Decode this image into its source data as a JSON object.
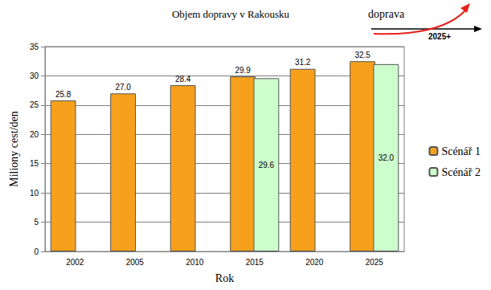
{
  "chart_data": {
    "type": "bar",
    "title": "Objem dopravy v Rakousku",
    "x_label": "Rok",
    "y_label": "Miliony cest/den",
    "annotations": [
      "doprava",
      "2025+"
    ],
    "categories": [
      "2002",
      "2005",
      "2010",
      "2015",
      "2020",
      "2025"
    ],
    "series": [
      {
        "name": "Scénář 1",
        "color": "#f7a01c",
        "values": [
          25.8,
          27.0,
          28.4,
          29.9,
          31.2,
          32.5
        ],
        "value_labels": [
          "25.8",
          "27.0",
          "28.4",
          "29.9",
          "31.2",
          "32.5"
        ]
      },
      {
        "name": "Scénář 2",
        "color": "#ccffcc",
        "values": [
          null,
          null,
          null,
          29.6,
          null,
          32.0
        ],
        "value_labels": [
          null,
          null,
          null,
          "29.6",
          null,
          "32.0"
        ]
      }
    ],
    "ylim": [
      0,
      35
    ],
    "yticks": [
      0,
      5,
      10,
      15,
      20,
      25,
      30,
      35
    ],
    "grid": true,
    "legend": "right",
    "data_labels": true
  }
}
